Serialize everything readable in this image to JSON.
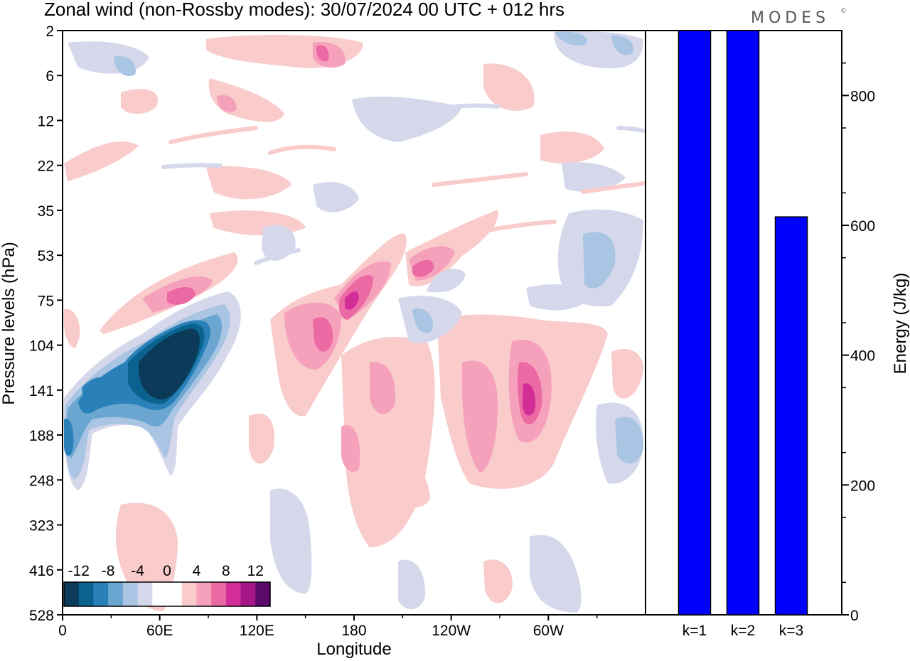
{
  "title": "Zonal wind (non-Rossby modes):  30/07/2024  00 UTC  + 012 hrs",
  "brand": "MODES",
  "brand_mark": "©",
  "chart_data": [
    {
      "type": "heatmap",
      "variable": "Zonal wind (non-Rossby modes)",
      "ylabel": "Pressure levels (hPa)",
      "xlabel": "Longitude",
      "y_levels": [
        "2",
        "6",
        "12",
        "22",
        "35",
        "53",
        "75",
        "104",
        "141",
        "188",
        "248",
        "323",
        "416",
        "528"
      ],
      "x_ticks": [
        "0",
        "60E",
        "120E",
        "180",
        "120W",
        "60W"
      ],
      "x_tick_degrees": [
        0,
        60,
        120,
        180,
        240,
        300
      ],
      "x_range_degrees": [
        0,
        360
      ],
      "colorbar": {
        "labels": [
          "-12",
          "-8",
          "-4",
          "0",
          "4",
          "8",
          "12"
        ],
        "colors": [
          "#0b3b58",
          "#0a628f",
          "#2a80b8",
          "#6aa6d0",
          "#a9c5e3",
          "#d5d8ea",
          "#ffffff",
          "#ffffff",
          "#f9cbcb",
          "#f6a1bb",
          "#ec6aa4",
          "#d32d97",
          "#a51886",
          "#5a0a6b"
        ]
      },
      "features": [
        {
          "sign": "negative",
          "lon": [
            0,
            100
          ],
          "levels": [
            "75",
            "248"
          ],
          "peak": -12
        },
        {
          "sign": "positive",
          "lon": [
            140,
            200
          ],
          "levels": [
            "53",
            "188"
          ],
          "peak": 10
        },
        {
          "sign": "positive",
          "lon": [
            260,
            320
          ],
          "levels": [
            "104",
            "248"
          ],
          "peak": 10
        },
        {
          "sign": "positive",
          "lon": [
            170,
            240
          ],
          "levels": [
            "141",
            "416"
          ],
          "peak": 6
        },
        {
          "sign": "positive",
          "lon": [
            30,
            100
          ],
          "levels": [
            "248",
            "528"
          ],
          "peak": 4
        },
        {
          "sign": "negative",
          "lon": [
            280,
            360
          ],
          "levels": [
            "22",
            "104"
          ],
          "peak": -6
        },
        {
          "sign": "negative",
          "lon": [
            130,
            160
          ],
          "levels": [
            "248",
            "416"
          ],
          "peak": -2
        }
      ]
    },
    {
      "type": "bar",
      "categories": [
        "k=1",
        "k=2",
        "k=3"
      ],
      "values": [
        900,
        900,
        613
      ],
      "ylabel": "Energy (J/kg)",
      "ylim": [
        0,
        900
      ],
      "yticks": [
        0,
        200,
        400,
        600,
        800
      ],
      "bar_color": "#0000ff"
    }
  ]
}
